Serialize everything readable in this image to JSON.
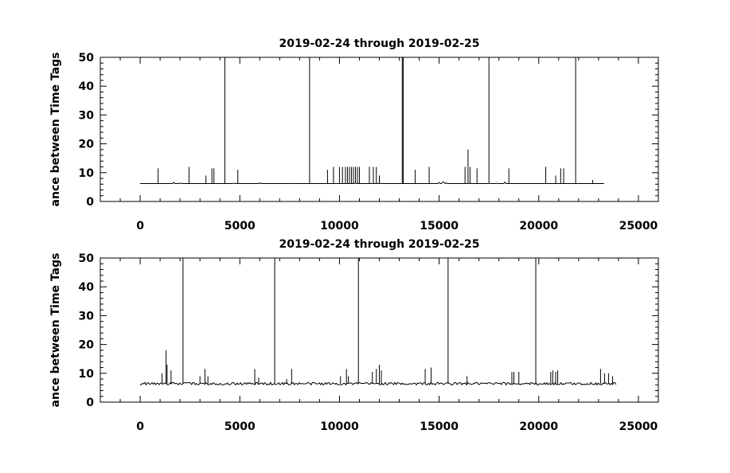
{
  "chart_data": [
    {
      "type": "line",
      "title": "2019-02-24 through 2019-02-25",
      "ylabel": "ance between Time Tags",
      "xlim": [
        -2000,
        26000
      ],
      "ylim": [
        0,
        50
      ],
      "xticks": [
        0,
        5000,
        10000,
        15000,
        20000,
        25000
      ],
      "yticks": [
        0,
        10,
        20,
        30,
        40,
        50
      ],
      "x_range": [
        0,
        23300
      ],
      "baseline": 6.2,
      "spikes": [
        {
          "x": 900,
          "y": 11.5
        },
        {
          "x": 2450,
          "y": 12
        },
        {
          "x": 3300,
          "y": 9
        },
        {
          "x": 3600,
          "y": 11.5
        },
        {
          "x": 3700,
          "y": 11.5
        },
        {
          "x": 4250,
          "y": 50
        },
        {
          "x": 4900,
          "y": 11
        },
        {
          "x": 8500,
          "y": 50
        },
        {
          "x": 9400,
          "y": 11
        },
        {
          "x": 9700,
          "y": 12
        },
        {
          "x": 10000,
          "y": 12
        },
        {
          "x": 10150,
          "y": 12
        },
        {
          "x": 10300,
          "y": 12
        },
        {
          "x": 10400,
          "y": 12
        },
        {
          "x": 10500,
          "y": 12
        },
        {
          "x": 10600,
          "y": 12
        },
        {
          "x": 10700,
          "y": 12
        },
        {
          "x": 10800,
          "y": 12
        },
        {
          "x": 10900,
          "y": 12
        },
        {
          "x": 11000,
          "y": 12
        },
        {
          "x": 11500,
          "y": 12
        },
        {
          "x": 11700,
          "y": 12
        },
        {
          "x": 11850,
          "y": 12
        },
        {
          "x": 12000,
          "y": 9
        },
        {
          "x": 13150,
          "y": 50
        },
        {
          "x": 13200,
          "y": 50
        },
        {
          "x": 13800,
          "y": 11
        },
        {
          "x": 14500,
          "y": 12
        },
        {
          "x": 16300,
          "y": 12
        },
        {
          "x": 16450,
          "y": 18
        },
        {
          "x": 16550,
          "y": 12
        },
        {
          "x": 16900,
          "y": 11.5
        },
        {
          "x": 17500,
          "y": 50
        },
        {
          "x": 18500,
          "y": 11.5
        },
        {
          "x": 20350,
          "y": 12
        },
        {
          "x": 20850,
          "y": 9
        },
        {
          "x": 21100,
          "y": 11.5
        },
        {
          "x": 21250,
          "y": 11.5
        },
        {
          "x": 21850,
          "y": 50
        },
        {
          "x": 22700,
          "y": 7.5
        }
      ]
    },
    {
      "type": "line",
      "title": "2019-02-24 through 2019-02-25",
      "ylabel": "ance between Time Tags",
      "xlim": [
        -2000,
        26000
      ],
      "ylim": [
        0,
        50
      ],
      "xticks": [
        0,
        5000,
        10000,
        15000,
        20000,
        25000
      ],
      "yticks": [
        0,
        10,
        20,
        30,
        40,
        50
      ],
      "x_range": [
        0,
        23900
      ],
      "baseline": 6.4,
      "spikes": [
        {
          "x": 1100,
          "y": 10
        },
        {
          "x": 1300,
          "y": 18
        },
        {
          "x": 1350,
          "y": 13
        },
        {
          "x": 1550,
          "y": 11
        },
        {
          "x": 2150,
          "y": 50
        },
        {
          "x": 3000,
          "y": 9
        },
        {
          "x": 3250,
          "y": 11.5
        },
        {
          "x": 3400,
          "y": 9
        },
        {
          "x": 5750,
          "y": 11.5
        },
        {
          "x": 5950,
          "y": 8.5
        },
        {
          "x": 6750,
          "y": 50
        },
        {
          "x": 7350,
          "y": 8
        },
        {
          "x": 7600,
          "y": 11.5
        },
        {
          "x": 10050,
          "y": 9
        },
        {
          "x": 10350,
          "y": 11.5
        },
        {
          "x": 10450,
          "y": 9
        },
        {
          "x": 10950,
          "y": 50
        },
        {
          "x": 11650,
          "y": 10.5
        },
        {
          "x": 11850,
          "y": 11.5
        },
        {
          "x": 12000,
          "y": 13
        },
        {
          "x": 12100,
          "y": 11
        },
        {
          "x": 14300,
          "y": 11.5
        },
        {
          "x": 14600,
          "y": 12
        },
        {
          "x": 15450,
          "y": 50
        },
        {
          "x": 16400,
          "y": 9
        },
        {
          "x": 18650,
          "y": 10.5
        },
        {
          "x": 18750,
          "y": 10.5
        },
        {
          "x": 19000,
          "y": 10.5
        },
        {
          "x": 19850,
          "y": 50
        },
        {
          "x": 20600,
          "y": 10.5
        },
        {
          "x": 20700,
          "y": 11
        },
        {
          "x": 20850,
          "y": 10.5
        },
        {
          "x": 20950,
          "y": 11
        },
        {
          "x": 23100,
          "y": 11.5
        },
        {
          "x": 23300,
          "y": 10
        },
        {
          "x": 23500,
          "y": 10
        },
        {
          "x": 23700,
          "y": 9
        }
      ]
    }
  ]
}
